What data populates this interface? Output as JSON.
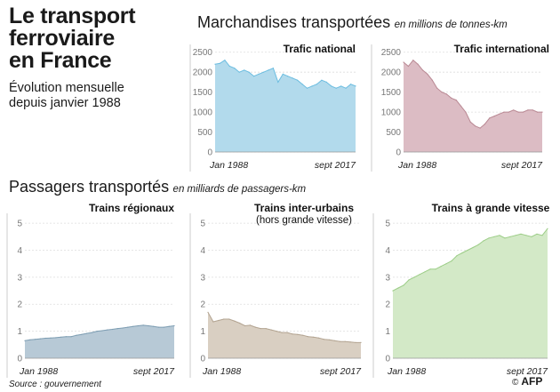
{
  "header": {
    "title": "Le transport\nferroviaire\nen France",
    "subtitle": "Évolution mensuelle\ndepuis janvier 1988"
  },
  "sections": {
    "freight": {
      "title": "Marchandises transportées",
      "unit": "en millions de tonnes-km"
    },
    "passengers": {
      "title": "Passagers transportés",
      "unit": "en milliards de passagers-km"
    }
  },
  "footer": {
    "source": "Source : gouvernement",
    "credit": "AFP",
    "copyright": "©"
  },
  "colors": {
    "national": "#b2daec",
    "national_line": "#6cbde0",
    "international": "#dcbcc4",
    "international_line": "#b98893",
    "regional": "#b7c9d6",
    "regional_line": "#7d9db2",
    "interurban": "#d9cfc2",
    "interurban_line": "#b3a491",
    "tgv": "#d3e9c7",
    "tgv_line": "#9ccd87"
  },
  "chart_data": [
    {
      "type": "area",
      "title": "Trafic national",
      "x": [
        "1988",
        "1989",
        "1990",
        "1991",
        "1992",
        "1993",
        "1994",
        "1995",
        "1996",
        "1997",
        "1998",
        "1999",
        "2000",
        "2001",
        "2002",
        "2003",
        "2004",
        "2005",
        "2006",
        "2007",
        "2008",
        "2009",
        "2010",
        "2011",
        "2012",
        "2013",
        "2014",
        "2015",
        "2016",
        "2017"
      ],
      "values": [
        2200,
        2220,
        2300,
        2150,
        2100,
        2000,
        2050,
        2000,
        1900,
        1950,
        2000,
        2050,
        2100,
        1750,
        1950,
        1900,
        1850,
        1800,
        1700,
        1600,
        1650,
        1700,
        1800,
        1750,
        1650,
        1600,
        1650,
        1600,
        1700,
        1650
      ],
      "x_labels": [
        "Jan 1988",
        "sept 2017"
      ],
      "yticks": [
        0,
        500,
        1000,
        1500,
        2000,
        2500
      ],
      "ylim": [
        0,
        2650
      ]
    },
    {
      "type": "area",
      "title": "Trafic international",
      "x": [
        "1988",
        "1989",
        "1990",
        "1991",
        "1992",
        "1993",
        "1994",
        "1995",
        "1996",
        "1997",
        "1998",
        "1999",
        "2000",
        "2001",
        "2002",
        "2003",
        "2004",
        "2005",
        "2006",
        "2007",
        "2008",
        "2009",
        "2010",
        "2011",
        "2012",
        "2013",
        "2014",
        "2015",
        "2016",
        "2017"
      ],
      "values": [
        2250,
        2150,
        2300,
        2200,
        2050,
        1950,
        1800,
        1600,
        1500,
        1450,
        1350,
        1300,
        1150,
        1000,
        750,
        650,
        600,
        700,
        850,
        900,
        950,
        1000,
        1000,
        1050,
        1000,
        1000,
        1050,
        1050,
        1000,
        1000
      ],
      "x_labels": [
        "Jan 1988",
        "sept 2017"
      ],
      "yticks": [
        0,
        500,
        1000,
        1500,
        2000,
        2500
      ],
      "ylim": [
        0,
        2650
      ]
    },
    {
      "type": "area",
      "title": "Trains régionaux",
      "x": [
        "1988",
        "1989",
        "1990",
        "1991",
        "1992",
        "1993",
        "1994",
        "1995",
        "1996",
        "1997",
        "1998",
        "1999",
        "2000",
        "2001",
        "2002",
        "2003",
        "2004",
        "2005",
        "2006",
        "2007",
        "2008",
        "2009",
        "2010",
        "2011",
        "2012",
        "2013",
        "2014",
        "2015",
        "2016",
        "2017"
      ],
      "values": [
        0.65,
        0.68,
        0.7,
        0.72,
        0.74,
        0.75,
        0.76,
        0.78,
        0.8,
        0.8,
        0.85,
        0.88,
        0.92,
        0.95,
        1.0,
        1.02,
        1.05,
        1.07,
        1.1,
        1.12,
        1.15,
        1.18,
        1.2,
        1.22,
        1.2,
        1.18,
        1.15,
        1.15,
        1.18,
        1.2
      ],
      "x_labels": [
        "Jan 1988",
        "sept 2017"
      ],
      "yticks": [
        0,
        1,
        2,
        3,
        4,
        5
      ],
      "ylim": [
        0,
        5.3
      ]
    },
    {
      "type": "area",
      "title": "Trains inter-urbains",
      "subtitle": "(hors grande vitesse)",
      "x": [
        "1988",
        "1989",
        "1990",
        "1991",
        "1992",
        "1993",
        "1994",
        "1995",
        "1996",
        "1997",
        "1998",
        "1999",
        "2000",
        "2001",
        "2002",
        "2003",
        "2004",
        "2005",
        "2006",
        "2007",
        "2008",
        "2009",
        "2010",
        "2011",
        "2012",
        "2013",
        "2014",
        "2015",
        "2016",
        "2017"
      ],
      "values": [
        1.7,
        1.35,
        1.4,
        1.45,
        1.45,
        1.38,
        1.3,
        1.2,
        1.22,
        1.15,
        1.1,
        1.1,
        1.05,
        1.0,
        0.95,
        0.95,
        0.9,
        0.88,
        0.85,
        0.8,
        0.78,
        0.75,
        0.7,
        0.68,
        0.65,
        0.62,
        0.62,
        0.6,
        0.58,
        0.58
      ],
      "x_labels": [
        "Jan 1988",
        "sept 2017"
      ],
      "yticks": [
        0,
        1,
        2,
        3,
        4,
        5
      ],
      "ylim": [
        0,
        5.3
      ]
    },
    {
      "type": "area",
      "title": "Trains à grande vitesse",
      "x": [
        "1988",
        "1989",
        "1990",
        "1991",
        "1992",
        "1993",
        "1994",
        "1995",
        "1996",
        "1997",
        "1998",
        "1999",
        "2000",
        "2001",
        "2002",
        "2003",
        "2004",
        "2005",
        "2006",
        "2007",
        "2008",
        "2009",
        "2010",
        "2011",
        "2012",
        "2013",
        "2014",
        "2015",
        "2016",
        "2017"
      ],
      "values": [
        2.5,
        2.6,
        2.7,
        2.9,
        3.0,
        3.1,
        3.2,
        3.3,
        3.3,
        3.4,
        3.5,
        3.6,
        3.8,
        3.9,
        4.0,
        4.1,
        4.2,
        4.35,
        4.45,
        4.5,
        4.55,
        4.45,
        4.5,
        4.55,
        4.6,
        4.55,
        4.5,
        4.6,
        4.55,
        4.8
      ],
      "x_labels": [
        "Jan 1988",
        "sept 2017"
      ],
      "yticks": [
        0,
        1,
        2,
        3,
        4,
        5
      ],
      "ylim": [
        0,
        5.3
      ]
    }
  ]
}
